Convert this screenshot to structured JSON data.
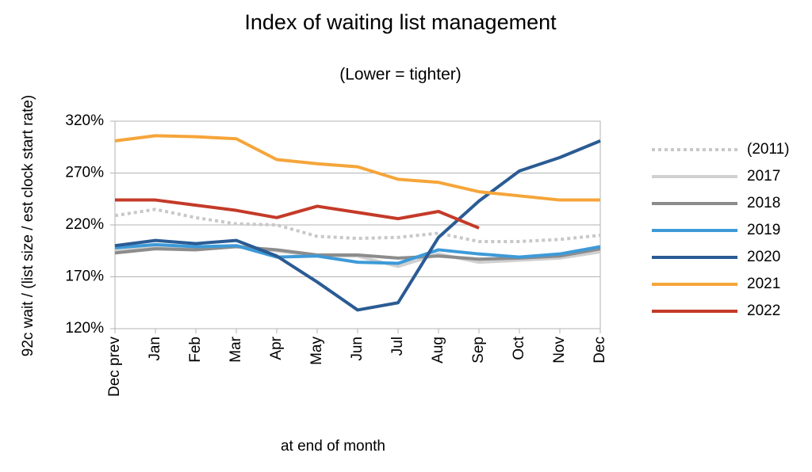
{
  "chart_data": {
    "type": "line",
    "title": "Index of waiting list management",
    "subtitle": "(Lower = tighter)",
    "y_label": "92c wait / (list size / est clock start rate)",
    "x_label": "at end of month",
    "categories": [
      "Dec prev",
      "Jan",
      "Feb",
      "Mar",
      "Apr",
      "May",
      "Jun",
      "Jul",
      "Aug",
      "Sep",
      "Oct",
      "Nov",
      "Dec"
    ],
    "ylim": [
      120,
      320
    ],
    "yticks": [
      {
        "value": 120,
        "label": "120%"
      },
      {
        "value": 170,
        "label": "170%"
      },
      {
        "value": 220,
        "label": "220%"
      },
      {
        "value": 270,
        "label": "270%"
      },
      {
        "value": 320,
        "label": "320%"
      }
    ],
    "grid": true,
    "legend": "right",
    "series": [
      {
        "name": "(2011)",
        "color": "#c8c8c8",
        "dashed": true,
        "values": [
          229,
          235,
          227,
          221,
          220,
          209,
          207,
          208,
          212,
          204,
          204,
          206,
          210
        ]
      },
      {
        "name": "2017",
        "color": "#d0d0d0",
        "values": [
          195,
          199,
          198,
          200,
          195,
          190,
          190,
          180,
          192,
          184,
          186,
          188,
          194
        ]
      },
      {
        "name": "2018",
        "color": "#8c8c8c",
        "values": [
          193,
          197,
          196,
          199,
          196,
          191,
          191,
          188,
          190,
          187,
          188,
          190,
          197
        ]
      },
      {
        "name": "2019",
        "color": "#3d9ad8",
        "values": [
          198,
          201,
          199,
          200,
          189,
          190,
          184,
          183,
          196,
          192,
          189,
          192,
          199
        ]
      },
      {
        "name": "2020",
        "color": "#2a5b94",
        "values": [
          200,
          205,
          202,
          205,
          190,
          165,
          138,
          145,
          208,
          243,
          272,
          285,
          301
        ]
      },
      {
        "name": "2021",
        "color": "#f5a53a",
        "values": [
          301,
          306,
          305,
          303,
          283,
          279,
          276,
          264,
          261,
          252,
          248,
          244,
          244
        ]
      },
      {
        "name": "2022",
        "color": "#c43a28",
        "values": [
          244,
          244,
          239,
          234,
          227,
          238,
          232,
          226,
          233,
          217,
          null,
          null,
          null
        ]
      }
    ]
  }
}
